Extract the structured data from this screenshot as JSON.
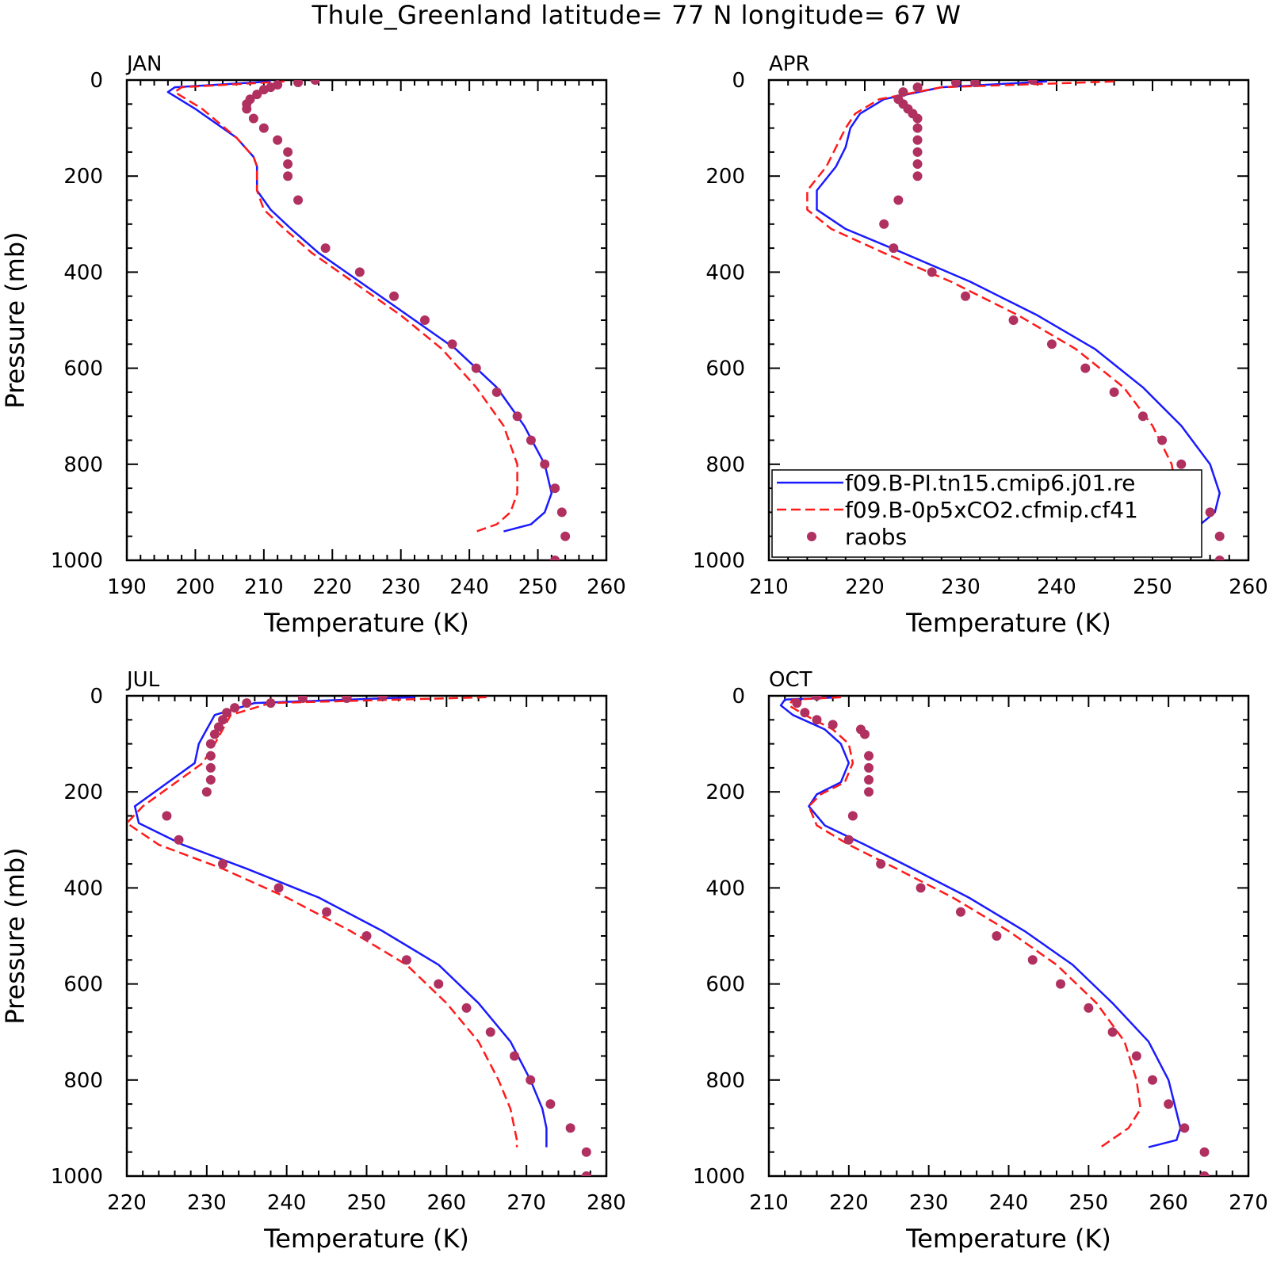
{
  "figure": {
    "title": "Thule_Greenland  latitude= 77 N longitude= 67 W",
    "xlabel": "Temperature (K)",
    "ylabel": "Pressure (mb)"
  },
  "legend": {
    "items": [
      {
        "label": "f09.B-PI.tn15.cmip6.j01.re",
        "color": "#1a1aff",
        "style": "solid"
      },
      {
        "label": "f09.B-0p5xCO2.cfmip.cf41",
        "color": "#ff1a1a",
        "style": "dashed"
      },
      {
        "label": "raobs",
        "color": "#b03060",
        "style": "marker"
      }
    ],
    "placement": "lower-right of APR panel"
  },
  "colors": {
    "model_pi": "#1a1aff",
    "model_co2": "#ff1a1a",
    "raobs": "#b03060"
  },
  "chart_data": [
    {
      "type": "line",
      "panel": "JAN",
      "title": "JAN",
      "xlim": [
        190,
        260
      ],
      "xticks": [
        190,
        200,
        210,
        220,
        230,
        240,
        250,
        260
      ],
      "ylim": [
        1000,
        0
      ],
      "yticks": [
        0,
        200,
        400,
        600,
        800,
        1000
      ],
      "series": [
        {
          "name": "f09.B-PI.tn15.cmip6.j01.re",
          "x": [
            211,
            197,
            196,
            200,
            206,
            208.5,
            209,
            209,
            211,
            214,
            218,
            224,
            231,
            238,
            244,
            248,
            251,
            252,
            251,
            249,
            245
          ],
          "y": [
            3,
            15,
            25,
            60,
            120,
            160,
            180,
            230,
            270,
            310,
            360,
            420,
            490,
            560,
            640,
            720,
            800,
            860,
            900,
            925,
            940
          ]
        },
        {
          "name": "f09.B-0p5xCO2.cfmip.cf41",
          "x": [
            213,
            198,
            197,
            201,
            206,
            208.5,
            209,
            209,
            210,
            213,
            217,
            223,
            230,
            236,
            241,
            245,
            247,
            247,
            246,
            244,
            241
          ],
          "y": [
            3,
            15,
            25,
            60,
            120,
            160,
            180,
            230,
            270,
            310,
            360,
            420,
            490,
            560,
            640,
            720,
            800,
            860,
            900,
            925,
            940
          ]
        },
        {
          "name": "raobs",
          "x": [
            217.5,
            215,
            212,
            211,
            210,
            209,
            208,
            207.5,
            207.5,
            208.5,
            210,
            212,
            213.5,
            213.5,
            213.5,
            215,
            219,
            224,
            229,
            233.5,
            237.5,
            241,
            244,
            247,
            249,
            251,
            252.5,
            253.5,
            254,
            252.5
          ],
          "y": [
            0,
            5,
            10,
            15,
            20,
            30,
            40,
            50,
            60,
            80,
            100,
            125,
            150,
            175,
            200,
            250,
            350,
            400,
            450,
            500,
            550,
            600,
            650,
            700,
            750,
            800,
            850,
            900,
            950,
            1000
          ]
        }
      ]
    },
    {
      "type": "line",
      "panel": "APR",
      "title": "APR",
      "xlim": [
        210,
        260
      ],
      "xticks": [
        210,
        220,
        230,
        240,
        250,
        260
      ],
      "ylim": [
        1000,
        0
      ],
      "yticks": [
        0,
        200,
        400,
        600,
        800,
        1000
      ],
      "series": [
        {
          "name": "f09.B-PI.tn15.cmip6.j01.re",
          "x": [
            239,
            228,
            222,
            219.5,
            218.5,
            218,
            217,
            215,
            215,
            218,
            224,
            231,
            238,
            244,
            249,
            253,
            256,
            257,
            256.5,
            255,
            253
          ],
          "y": [
            3,
            15,
            40,
            70,
            100,
            140,
            180,
            230,
            270,
            310,
            360,
            420,
            490,
            560,
            640,
            720,
            800,
            860,
            900,
            925,
            940
          ]
        },
        {
          "name": "f09.B-0p5xCO2.cfmip.cf41",
          "x": [
            246,
            228,
            221.5,
            219,
            218,
            217,
            216,
            214,
            214,
            216.5,
            222,
            229,
            236,
            242,
            247,
            250,
            252,
            252.5,
            252,
            250,
            248
          ],
          "y": [
            3,
            15,
            40,
            70,
            100,
            140,
            180,
            230,
            270,
            310,
            360,
            420,
            490,
            560,
            640,
            720,
            800,
            860,
            900,
            925,
            940
          ]
        },
        {
          "name": "raobs",
          "x": [
            237.5,
            231.5,
            229.5,
            225.5,
            224,
            223.5,
            224,
            224.5,
            225,
            225.5,
            225.5,
            225.5,
            225.5,
            225.5,
            225.5,
            223.5,
            222,
            223,
            227,
            230.5,
            235.5,
            239.5,
            243,
            246,
            249,
            251,
            253,
            254.5,
            256,
            257,
            257
          ],
          "y": [
            0,
            5,
            5,
            15,
            25,
            40,
            50,
            60,
            70,
            80,
            100,
            125,
            150,
            175,
            200,
            250,
            300,
            350,
            400,
            450,
            500,
            550,
            600,
            650,
            700,
            750,
            800,
            850,
            900,
            950,
            1000
          ]
        }
      ]
    },
    {
      "type": "line",
      "panel": "JUL",
      "title": "JUL",
      "xlim": [
        220,
        280
      ],
      "xticks": [
        220,
        230,
        240,
        250,
        260,
        270,
        280
      ],
      "ylim": [
        1000,
        0
      ],
      "yticks": [
        0,
        200,
        400,
        600,
        800,
        1000
      ],
      "series": [
        {
          "name": "f09.B-PI.tn15.cmip6.j01.re",
          "x": [
            256,
            236,
            231,
            230,
            229,
            228.5,
            226,
            221,
            221.5,
            227,
            235,
            244,
            252,
            259,
            264,
            268,
            270.5,
            272,
            272.5,
            272.5,
            272.5
          ],
          "y": [
            3,
            15,
            40,
            70,
            100,
            140,
            170,
            230,
            265,
            310,
            360,
            420,
            490,
            560,
            640,
            720,
            800,
            860,
            900,
            925,
            940
          ]
        },
        {
          "name": "f09.B-0p5xCO2.cfmip.cf41",
          "x": [
            265,
            238,
            233,
            232,
            231,
            229.5,
            227,
            222,
            220,
            224,
            232,
            240,
            248,
            255,
            260,
            264,
            266.5,
            268,
            268.5,
            268.8,
            268.8
          ],
          "y": [
            3,
            15,
            40,
            70,
            100,
            140,
            170,
            230,
            265,
            310,
            360,
            420,
            490,
            560,
            640,
            720,
            800,
            860,
            900,
            925,
            940
          ]
        },
        {
          "name": "raobs",
          "x": [
            252,
            247.5,
            242,
            238,
            235,
            233.5,
            232.5,
            232,
            231.5,
            231,
            230.5,
            230.5,
            230.5,
            230.5,
            230,
            225,
            226.5,
            232,
            239,
            245,
            250,
            255,
            259,
            262.5,
            265.5,
            268.5,
            270.5,
            273,
            275.5,
            277.5,
            277.5
          ],
          "y": [
            0,
            5,
            5,
            15,
            15,
            25,
            35,
            50,
            65,
            80,
            100,
            125,
            150,
            175,
            200,
            250,
            300,
            350,
            400,
            450,
            500,
            550,
            600,
            650,
            700,
            750,
            800,
            850,
            900,
            950,
            1000
          ]
        }
      ]
    },
    {
      "type": "line",
      "panel": "OCT",
      "title": "OCT",
      "xlim": [
        210,
        270
      ],
      "xticks": [
        210,
        220,
        230,
        240,
        250,
        260,
        270
      ],
      "ylim": [
        1000,
        0
      ],
      "yticks": [
        0,
        200,
        400,
        600,
        800,
        1000
      ],
      "series": [
        {
          "name": "f09.B-PI.tn15.cmip6.j01.re",
          "x": [
            219,
            212,
            211.5,
            213,
            217,
            219,
            220,
            219,
            216,
            215,
            217,
            222,
            228,
            235,
            242,
            248,
            253,
            257.5,
            260,
            261.5,
            261,
            257.5
          ],
          "y": [
            3,
            8,
            20,
            40,
            70,
            100,
            140,
            180,
            205,
            230,
            270,
            310,
            360,
            420,
            490,
            560,
            640,
            720,
            800,
            900,
            925,
            940
          ]
        },
        {
          "name": "f09.B-0p5xCO2.cfmip.cf41",
          "x": [
            219,
            213,
            212.5,
            214.5,
            218,
            220,
            220.5,
            219.5,
            216.5,
            215,
            216,
            220,
            226,
            233,
            240,
            246,
            251,
            254.5,
            256,
            256.5,
            255,
            251.5
          ],
          "y": [
            3,
            8,
            20,
            40,
            70,
            100,
            140,
            180,
            205,
            230,
            270,
            310,
            360,
            420,
            490,
            560,
            640,
            720,
            800,
            860,
            900,
            940
          ]
        },
        {
          "name": "raobs",
          "x": [
            216,
            213.5,
            214.5,
            216,
            218,
            221.5,
            222,
            222.5,
            222.5,
            222.5,
            222.5,
            220.5,
            220,
            224,
            229,
            234,
            238.5,
            243,
            246.5,
            250,
            253,
            256,
            258,
            260,
            262,
            264.5,
            264.5
          ],
          "y": [
            0,
            15,
            35,
            50,
            60,
            70,
            80,
            125,
            150,
            175,
            200,
            250,
            300,
            350,
            400,
            450,
            500,
            550,
            600,
            650,
            700,
            750,
            800,
            850,
            900,
            950,
            1000
          ]
        }
      ]
    }
  ]
}
